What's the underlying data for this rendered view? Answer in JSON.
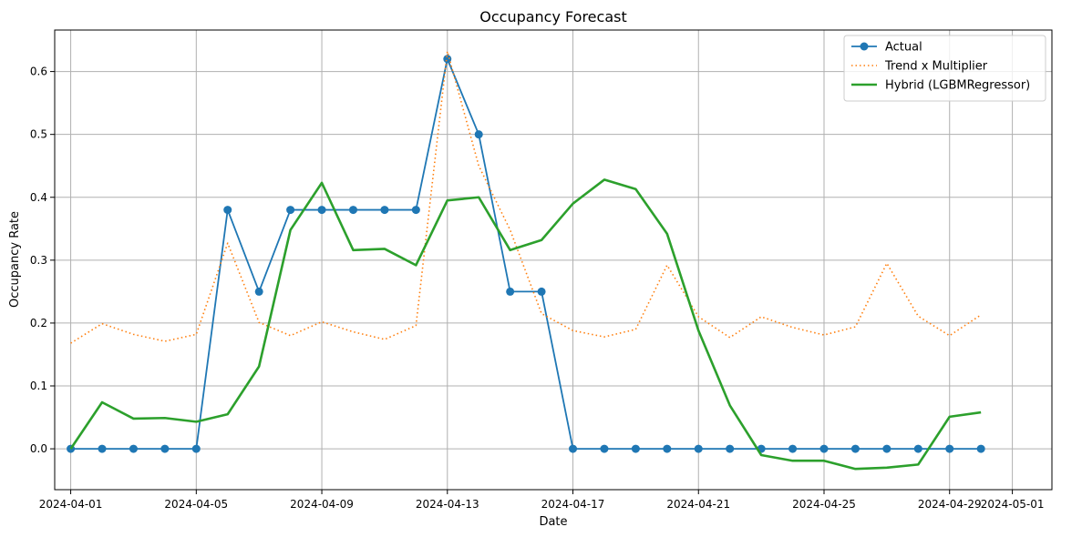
{
  "chart_data": {
    "type": "line",
    "title": "Occupancy Forecast",
    "xlabel": "Date",
    "ylabel": "Occupancy Rate",
    "x_ticks": [
      "2024-04-01",
      "2024-04-05",
      "2024-04-09",
      "2024-04-13",
      "2024-04-17",
      "2024-04-21",
      "2024-04-25",
      "2024-04-29",
      "2024-05-01"
    ],
    "y_ticks": [
      "0.0",
      "0.1",
      "0.2",
      "0.3",
      "0.4",
      "0.5",
      "0.6"
    ],
    "xlim": [
      "2024-03-31T11:45",
      "2024-05-02T06:15"
    ],
    "ylim": [
      -0.065,
      0.666
    ],
    "grid": true,
    "legend_position": "top-right",
    "x": [
      "2024-04-01",
      "2024-04-02",
      "2024-04-03",
      "2024-04-04",
      "2024-04-05",
      "2024-04-06",
      "2024-04-07",
      "2024-04-08",
      "2024-04-09",
      "2024-04-10",
      "2024-04-11",
      "2024-04-12",
      "2024-04-13",
      "2024-04-14",
      "2024-04-15",
      "2024-04-16",
      "2024-04-17",
      "2024-04-18",
      "2024-04-19",
      "2024-04-20",
      "2024-04-21",
      "2024-04-22",
      "2024-04-23",
      "2024-04-24",
      "2024-04-25",
      "2024-04-26",
      "2024-04-27",
      "2024-04-28",
      "2024-04-29",
      "2024-04-30"
    ],
    "series": [
      {
        "name": "Actual",
        "color": "#1f77b4",
        "style": "solid-markers",
        "values": [
          0,
          0,
          0,
          0,
          0,
          0.38,
          0.25,
          0.38,
          0.38,
          0.38,
          0.38,
          0.38,
          0.62,
          0.5,
          0.25,
          0.25,
          0,
          0,
          0,
          0,
          0,
          0,
          0,
          0,
          0,
          0,
          0,
          0,
          0,
          0
        ]
      },
      {
        "name": "Trend x Multiplier",
        "color": "#ff7f0e",
        "style": "dotted",
        "values": [
          0.168,
          0.199,
          0.182,
          0.171,
          0.182,
          0.327,
          0.201,
          0.18,
          0.202,
          0.186,
          0.174,
          0.196,
          0.632,
          0.45,
          0.348,
          0.215,
          0.188,
          0.178,
          0.19,
          0.292,
          0.21,
          0.177,
          0.21,
          0.193,
          0.181,
          0.194,
          0.295,
          0.211,
          0.18,
          0.213
        ]
      },
      {
        "name": "Hybrid (LGBMRegressor)",
        "color": "#2ca02c",
        "style": "solid-thick",
        "values": [
          0,
          0.074,
          0.048,
          0.049,
          0.043,
          0.055,
          0.131,
          0.348,
          0.423,
          0.316,
          0.318,
          0.292,
          0.395,
          0.4,
          0.316,
          0.332,
          0.39,
          0.428,
          0.413,
          0.342,
          0.188,
          0.069,
          -0.01,
          -0.019,
          -0.019,
          -0.032,
          -0.03,
          -0.025,
          0.051,
          0.058
        ]
      }
    ]
  }
}
